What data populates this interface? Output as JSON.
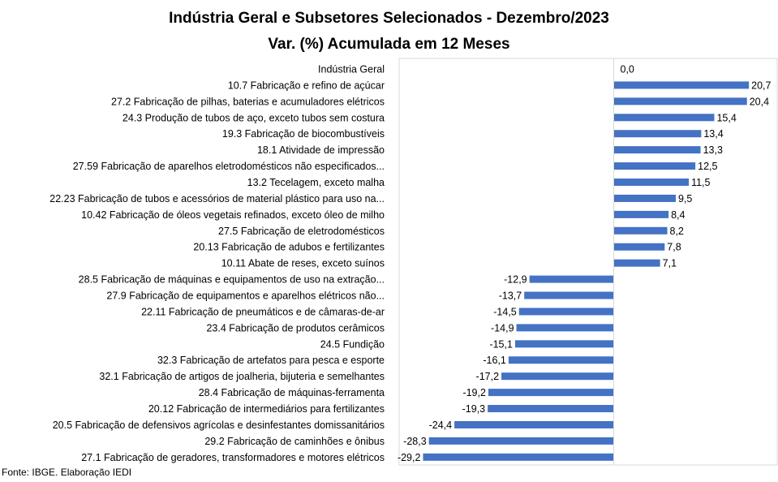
{
  "chart_data": {
    "type": "bar",
    "orientation": "horizontal",
    "title": "Indústria Geral e Subsetores Selecionados - Dezembro/2023",
    "subtitle": "Var. (%) Acumulada em 12 Meses",
    "xlabel": "",
    "ylabel": "",
    "xlim": [
      -30,
      21
    ],
    "grid": false,
    "legend": "none",
    "bar_color": "#4472C4",
    "categories": [
      "Indústria Geral",
      "10.7 Fabricação e refino de açúcar",
      "27.2 Fabricação de pilhas, baterias e acumuladores elétricos",
      "24.3 Produção de tubos de aço, exceto tubos sem costura",
      "19.3 Fabricação de biocombustíveis",
      "18.1 Atividade de impressão",
      "27.59 Fabricação de aparelhos eletrodomésticos não especificados...",
      "13.2 Tecelagem, exceto malha",
      "22.23 Fabricação de tubos e acessórios de material plástico para uso na...",
      "10.42 Fabricação de óleos vegetais refinados, exceto óleo de milho",
      "27.5 Fabricação de eletrodomésticos",
      "20.13 Fabricação de adubos e fertilizantes",
      "10.11 Abate de reses, exceto suínos",
      "28.5 Fabricação de máquinas e equipamentos de uso na extração...",
      "27.9 Fabricação de equipamentos e aparelhos elétricos não...",
      "22.11 Fabricação de pneumáticos e de câmaras-de-ar",
      "23.4 Fabricação de produtos cerâmicos",
      "24.5 Fundição",
      "32.3 Fabricação de artefatos para pesca e esporte",
      "32.1 Fabricação de artigos de joalheria, bijuteria e semelhantes",
      "28.4 Fabricação de máquinas-ferramenta",
      "20.12 Fabricação de intermediários para fertilizantes",
      "20.5 Fabricação de defensivos agrícolas e desinfestantes domissanitários",
      "29.2 Fabricação de caminhões e ônibus",
      "27.1 Fabricação de geradores, transformadores e motores elétricos"
    ],
    "values": [
      0.0,
      20.7,
      20.4,
      15.4,
      13.4,
      13.3,
      12.5,
      11.5,
      9.5,
      8.4,
      8.2,
      7.8,
      7.1,
      -12.9,
      -13.7,
      -14.5,
      -14.9,
      -15.1,
      -16.1,
      -17.2,
      -19.2,
      -19.3,
      -24.4,
      -28.3,
      -29.2
    ],
    "data_labels": [
      "0,0",
      "20,7",
      "20,4",
      "15,4",
      "13,4",
      "13,3",
      "12,5",
      "11,5",
      "9,5",
      "8,4",
      "8,2",
      "7,8",
      "7,1",
      "-12,9",
      "-13,7",
      "-14,5",
      "-14,9",
      "-15,1",
      "-16,1",
      "-17,2",
      "-19,2",
      "-19,3",
      "-24,4",
      "-28,3",
      "-29,2"
    ]
  },
  "footer": {
    "source": "Fonte: IBGE. Elaboração IEDI"
  }
}
